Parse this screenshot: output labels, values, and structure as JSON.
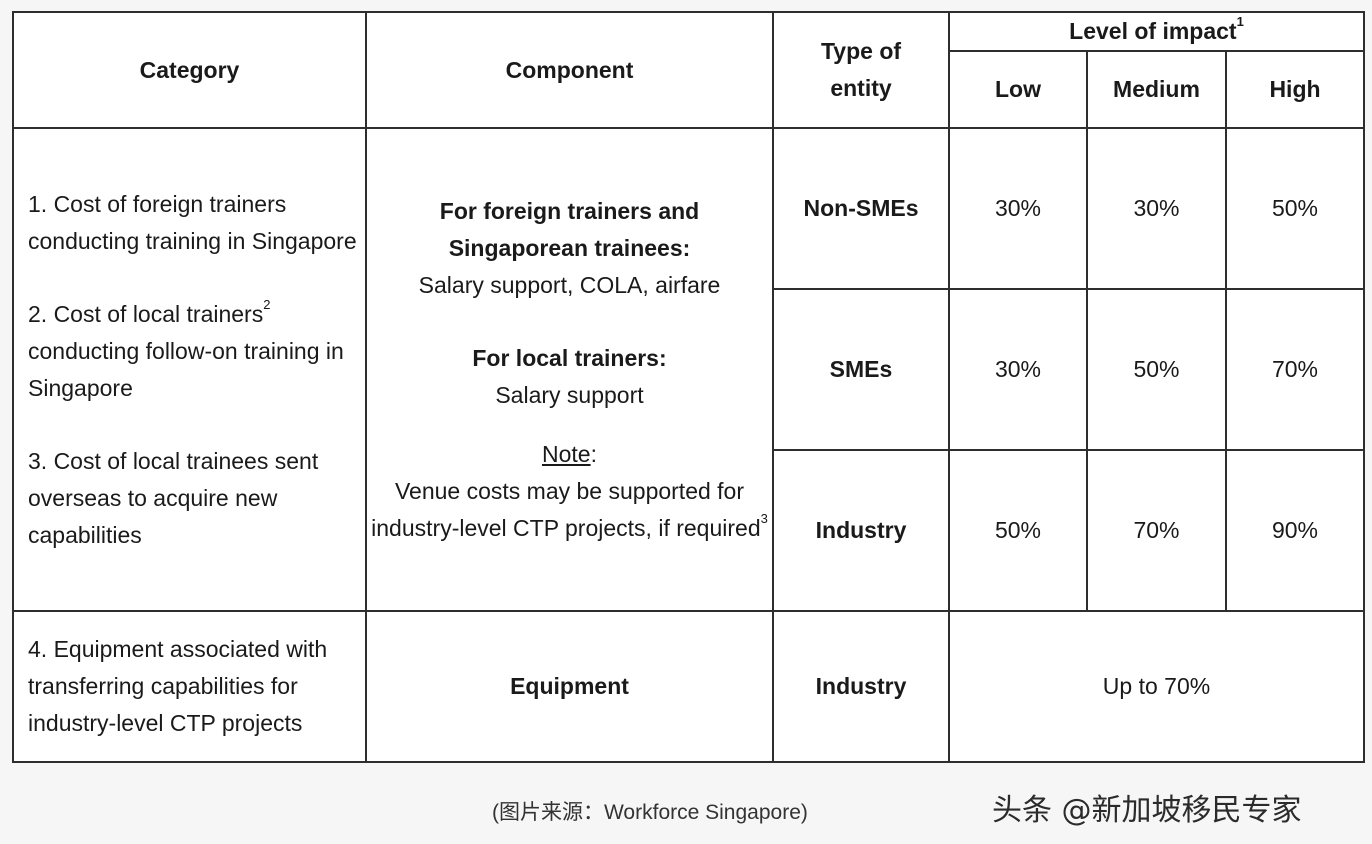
{
  "table": {
    "headers": {
      "category": "Category",
      "component": "Component",
      "type_of_entity_line1": "Type of",
      "type_of_entity_line2": "entity",
      "level_of_impact": "Level of impact",
      "level_of_impact_sup": "1",
      "low": "Low",
      "medium": "Medium",
      "high": "High"
    },
    "categories": {
      "c1": "1. Cost of foreign trainers conducting training in Singapore",
      "c2": "2. Cost of local trainers",
      "c2_sup": "2",
      "c2_rest": "conducting follow-on training in Singapore",
      "c3": "3. Cost of local trainees sent overseas to acquire new capabilities",
      "c4": "4. Equipment associated with transferring capabilities for industry-level CTP projects"
    },
    "component": {
      "foreign_title": "For foreign trainers and Singaporean trainees:",
      "foreign_desc": "Salary support, COLA, airfare",
      "local_title": "For local trainers:",
      "local_desc": "Salary support",
      "note_label": "Note",
      "note_colon": ":",
      "note_text": "Venue costs may be supported for industry-level CTP projects, if required",
      "note_sup": "3",
      "equipment": "Equipment"
    },
    "rows": [
      {
        "entity": "Non-SMEs",
        "low": "30%",
        "medium": "30%",
        "high": "50%"
      },
      {
        "entity": "SMEs",
        "low": "30%",
        "medium": "50%",
        "high": "70%"
      },
      {
        "entity": "Industry",
        "low": "50%",
        "medium": "70%",
        "high": "90%"
      }
    ],
    "equipment_row": {
      "entity": "Industry",
      "impact": "Up to 70%"
    }
  },
  "caption": "(图片来源：Workforce Singapore)",
  "watermark": "头条 @新加坡移民专家"
}
